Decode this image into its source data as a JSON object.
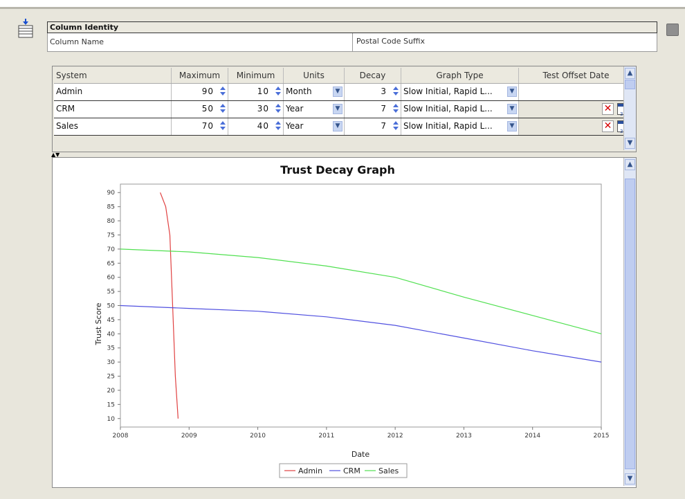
{
  "identity": {
    "header": "Column Identity",
    "label": "Column Name",
    "value": "Postal Code Suffix"
  },
  "table": {
    "columns": [
      "System",
      "Maximum",
      "Minimum",
      "Units",
      "Decay",
      "Graph Type",
      "Test Offset Date"
    ],
    "rows": [
      {
        "system": "Admin",
        "maximum": "90",
        "minimum": "10",
        "units": "Month",
        "decay": "3",
        "graph_type": "Slow Initial, Rapid L...",
        "test_offset_date": ""
      },
      {
        "system": "CRM",
        "maximum": "50",
        "minimum": "30",
        "units": "Year",
        "decay": "7",
        "graph_type": "Slow Initial, Rapid L...",
        "test_offset_date": ""
      },
      {
        "system": "Sales",
        "maximum": "70",
        "minimum": "40",
        "units": "Year",
        "decay": "7",
        "graph_type": "Slow Initial, Rapid L...",
        "test_offset_date": ""
      }
    ]
  },
  "icons": {
    "column": "column-table-icon",
    "spinner": "spinner-arrows-icon",
    "dropdown": "chevron-down-icon",
    "clear": "red-x-icon",
    "calendar": "calendar-icon",
    "scroll_up": "chevron-up-icon",
    "scroll_down": "chevron-down-icon"
  },
  "chart_data": {
    "type": "line",
    "title": "Trust Decay Graph",
    "xlabel": "Date",
    "ylabel": "Trust Score",
    "xlim": [
      2008,
      2015
    ],
    "ylim": [
      7,
      93
    ],
    "x_ticks": [
      "2008",
      "2009",
      "2010",
      "2011",
      "2012",
      "2013",
      "2014",
      "2015"
    ],
    "y_ticks": [
      "10",
      "15",
      "20",
      "25",
      "30",
      "35",
      "40",
      "45",
      "50",
      "55",
      "60",
      "65",
      "70",
      "75",
      "80",
      "85",
      "90"
    ],
    "grid": true,
    "legend_position": "bottom",
    "series": [
      {
        "name": "Admin",
        "color": "#e04040",
        "points": [
          [
            2008.58,
            90
          ],
          [
            2008.66,
            85
          ],
          [
            2008.72,
            75
          ],
          [
            2008.76,
            50
          ],
          [
            2008.8,
            25
          ],
          [
            2008.84,
            10
          ]
        ]
      },
      {
        "name": "CRM",
        "color": "#5050e0",
        "points": [
          [
            2008,
            50
          ],
          [
            2009,
            49
          ],
          [
            2010,
            48
          ],
          [
            2011,
            46
          ],
          [
            2012,
            43
          ],
          [
            2013,
            38.5
          ],
          [
            2014,
            34
          ],
          [
            2015,
            30
          ]
        ]
      },
      {
        "name": "Sales",
        "color": "#50e050",
        "points": [
          [
            2008,
            70
          ],
          [
            2009,
            69
          ],
          [
            2010,
            67
          ],
          [
            2011,
            64
          ],
          [
            2012,
            60
          ],
          [
            2013,
            53
          ],
          [
            2014,
            46.5
          ],
          [
            2015,
            40
          ]
        ]
      }
    ]
  }
}
